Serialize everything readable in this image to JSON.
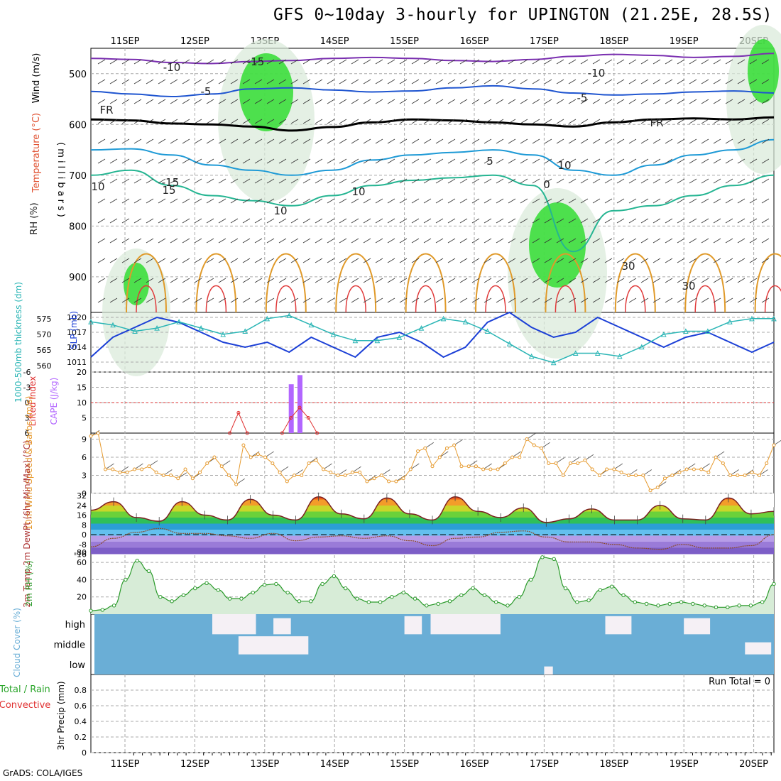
{
  "title": "GFS 0~10day 3-hourly for UPINGTON (21.25E, 28.5S)",
  "credit": "GrADS: COLA/IGES",
  "x_axis": {
    "dates": [
      "11SEP",
      "12SEP",
      "13SEP",
      "14SEP",
      "15SEP",
      "16SEP",
      "17SEP",
      "18SEP",
      "19SEP",
      "20SEP"
    ]
  },
  "colors": {
    "grid": "#aaaaaa",
    "temp_contour_cold": "#7a2fb0",
    "temp_contour_cool": "#1f55d0",
    "temp_contour_mild": "#1e9ad6",
    "temp_contour_warm": "#25b592",
    "temp_contour_hot": "#e09a2a",
    "freezing_line": "#000000",
    "rh_high": "#33dd33",
    "slp": "#1b3fd6",
    "thickness": "#2ab5b5",
    "lifted_index": "#e03030",
    "cape": "#b266ff",
    "wind_speed": "#e69a2e",
    "rh2m": "#2a9a2a",
    "cloud": "#6aaed6",
    "cloud_gap": "#f5f0f5"
  },
  "chart_data": [
    {
      "id": "upper_air",
      "type": "heatmap",
      "ylabel": "(millibars)",
      "side_labels": [
        "Wind (m/s)",
        "Temperature (°C)",
        "RH (%)"
      ],
      "ylim": [
        970,
        450
      ],
      "y_ticks": [
        500,
        600,
        700,
        800,
        900
      ],
      "contour_labels": [
        "-15",
        "-10",
        "-10",
        "-5",
        "-5",
        "FR",
        "FR",
        "5",
        "10",
        "10",
        "10",
        "-15",
        "15",
        "30",
        "30",
        "10",
        "0"
      ],
      "temperature_levels": [
        {
          "label": "-10",
          "values": [
            470,
            472,
            478,
            480,
            476,
            474,
            470,
            468,
            470,
            474,
            476,
            472,
            466,
            462,
            464,
            468,
            466,
            460
          ]
        },
        {
          "label": "-5",
          "values": [
            535,
            540,
            545,
            540,
            530,
            528,
            532,
            536,
            534,
            528,
            524,
            530,
            538,
            542,
            540,
            536,
            534,
            538
          ]
        },
        {
          "label": "FR",
          "values": [
            590,
            592,
            598,
            600,
            604,
            612,
            605,
            596,
            590,
            592,
            596,
            600,
            604,
            596,
            590,
            588,
            590,
            586
          ]
        },
        {
          "label": "5",
          "values": [
            650,
            648,
            660,
            680,
            690,
            700,
            690,
            670,
            660,
            655,
            650,
            660,
            690,
            700,
            680,
            660,
            650,
            630
          ]
        },
        {
          "label": "10",
          "values": [
            700,
            690,
            720,
            740,
            750,
            760,
            740,
            720,
            710,
            705,
            700,
            720,
            850,
            770,
            760,
            740,
            720,
            700
          ]
        }
      ]
    },
    {
      "id": "thickness_slp",
      "type": "line",
      "ylabel": "1000-500mb thickness (dm)",
      "ylabel2": "SLP (mb)",
      "y_ticks": [
        560,
        565,
        570,
        575
      ],
      "y2_ticks": [
        1011,
        1014,
        1017,
        1020
      ],
      "ylim": [
        558,
        577
      ],
      "y2lim": [
        1009,
        1021
      ],
      "series": [
        {
          "name": "SLP",
          "values": [
            1012,
            1016,
            1018,
            1020,
            1019,
            1017,
            1015,
            1014,
            1015,
            1013,
            1016,
            1014,
            1012,
            1016,
            1017,
            1015,
            1012,
            1014,
            1019,
            1021,
            1018,
            1016,
            1017,
            1020,
            1018,
            1016,
            1014,
            1016,
            1017,
            1015,
            1013,
            1015
          ]
        },
        {
          "name": "Thickness",
          "values": [
            574,
            573,
            571,
            572,
            574,
            572,
            570,
            571,
            575,
            576,
            573,
            570,
            568,
            568,
            569,
            572,
            575,
            574,
            571,
            567,
            563,
            561,
            564,
            564,
            563,
            566,
            570,
            571,
            571,
            574,
            575,
            575
          ]
        }
      ]
    },
    {
      "id": "stability",
      "type": "bar",
      "ylabel": "Lifted Index",
      "ylabel2": "CAPE (J/kg)",
      "y_ticks": [
        "6",
        "3",
        "0",
        "-3",
        "-6"
      ],
      "y2_ticks": [
        "5",
        "10",
        "15",
        "20"
      ],
      "y2lim": [
        0,
        20
      ],
      "cape_bars": [
        {
          "date": "13SEP",
          "hour": 9,
          "value": 16
        },
        {
          "date": "13SEP",
          "hour": 12,
          "value": 19
        }
      ],
      "lifted_index": [
        {
          "date": "12SEP",
          "hour": 12,
          "value": 6
        },
        {
          "date": "12SEP",
          "hour": 15,
          "value": 2
        },
        {
          "date": "12SEP",
          "hour": 18,
          "value": 6
        },
        {
          "date": "13SEP",
          "hour": 6,
          "value": 6
        },
        {
          "date": "13SEP",
          "hour": 9,
          "value": 3
        },
        {
          "date": "13SEP",
          "hour": 12,
          "value": 1
        },
        {
          "date": "13SEP",
          "hour": 15,
          "value": 3
        },
        {
          "date": "13SEP",
          "hour": 18,
          "value": 6
        }
      ]
    },
    {
      "id": "wind10m",
      "type": "line",
      "ylabel": "10m Wind Speed & Barbs (m/s)",
      "y_ticks": [
        0,
        3,
        6,
        9
      ],
      "ylim": [
        0,
        10
      ],
      "values": [
        9.5,
        10,
        4,
        4,
        3.5,
        3.5,
        4,
        4,
        4.5,
        3.5,
        3,
        3,
        2.5,
        4,
        2.5,
        3.5,
        5,
        6,
        4.5,
        3,
        1.5,
        8,
        6,
        6.5,
        6,
        5,
        3.5,
        2,
        3,
        3,
        5,
        5.5,
        4,
        3.5,
        3,
        3,
        3.5,
        3.5,
        2,
        2.5,
        3,
        2,
        2,
        2.5,
        4,
        7,
        7.5,
        4.5,
        6,
        7.5,
        8,
        4.5,
        4.5,
        4.5,
        4,
        4,
        4,
        5,
        6,
        6,
        9,
        8,
        7.5,
        5,
        5,
        3,
        5,
        5,
        5.5,
        4,
        3,
        4,
        4,
        3.5,
        3,
        3,
        3,
        0.5,
        1,
        2.5,
        3,
        3.5,
        4,
        4,
        4,
        3.5,
        6,
        5,
        3,
        3,
        3,
        3.5,
        3,
        5,
        8
      ]
    },
    {
      "id": "temp2m",
      "type": "area",
      "ylabel": "2m Temp 2m DewPt (6hr Min/Max) (°C)",
      "y_ticks": [
        32,
        24,
        16,
        8,
        0,
        -8,
        -16,
        -80
      ],
      "temperature": [
        20,
        27,
        14,
        11,
        27,
        16,
        12,
        29,
        16,
        12,
        31,
        17,
        13,
        30,
        17,
        12,
        31,
        19,
        14,
        22,
        10,
        13,
        21,
        12,
        12,
        24,
        13,
        12,
        30,
        17,
        19
      ],
      "dewpoint": [
        -10,
        -3,
        2,
        5,
        1,
        1,
        -1,
        -3,
        1,
        -5,
        -2,
        -1,
        -3,
        -1,
        -5,
        -9,
        -3,
        -2,
        2,
        3,
        -2,
        -6,
        -6,
        -8,
        -11,
        -12,
        -8,
        -11,
        -11,
        -9,
        0
      ]
    },
    {
      "id": "rh2m",
      "type": "area",
      "ylabel": "2m RH (%)",
      "y_ticks": [
        20,
        40,
        60
      ],
      "ylim": [
        0,
        70
      ],
      "values": [
        4,
        5,
        10,
        40,
        62,
        50,
        20,
        15,
        22,
        30,
        36,
        28,
        18,
        18,
        25,
        34,
        35,
        25,
        15,
        15,
        35,
        44,
        30,
        18,
        14,
        14,
        20,
        25,
        18,
        10,
        12,
        15,
        22,
        30,
        22,
        14,
        10,
        20,
        40,
        66,
        64,
        30,
        14,
        16,
        28,
        32,
        22,
        14,
        12,
        10,
        12,
        14,
        12,
        10,
        8,
        8,
        10,
        10,
        14,
        35
      ]
    },
    {
      "id": "cloud",
      "type": "heatmap",
      "ylabel": "Cloud Cover (%)",
      "levels": [
        "high",
        "middle",
        "low"
      ],
      "gaps": [
        {
          "level": "high",
          "from_date": "12SEP",
          "from_hour": 6,
          "to_date": "12SEP",
          "to_hour": 21,
          "value": 100
        },
        {
          "level": "high",
          "from_date": "13SEP",
          "from_hour": 3,
          "to_date": "13SEP",
          "to_hour": 9,
          "value": 80
        },
        {
          "level": "middle",
          "from_date": "12SEP",
          "from_hour": 15,
          "to_date": "13SEP",
          "to_hour": 15,
          "value": 90
        },
        {
          "level": "high",
          "from_date": "15SEP",
          "from_hour": 0,
          "to_date": "15SEP",
          "to_hour": 6,
          "value": 90
        },
        {
          "level": "high",
          "from_date": "15SEP",
          "from_hour": 9,
          "to_date": "16SEP",
          "to_hour": 9,
          "value": 100
        },
        {
          "level": "high",
          "from_date": "17SEP",
          "from_hour": 21,
          "to_date": "18SEP",
          "to_hour": 6,
          "value": 90
        },
        {
          "level": "high",
          "from_date": "19SEP",
          "from_hour": 0,
          "to_date": "19SEP",
          "to_hour": 9,
          "value": 80
        },
        {
          "level": "middle",
          "from_date": "19SEP",
          "from_hour": 21,
          "to_date": "20SEP",
          "to_hour": 6,
          "value": 60
        },
        {
          "level": "low",
          "from_date": "17SEP",
          "from_hour": 0,
          "to_date": "17SEP",
          "to_hour": 3,
          "value": 40
        }
      ]
    },
    {
      "id": "precip",
      "type": "bar",
      "ylabel": "3hr Precip (mm)",
      "side_labels": [
        "Total / Rain",
        "Convective"
      ],
      "y_ticks": [
        0,
        0.2,
        0.4,
        0.6,
        0.8
      ],
      "ylim": [
        0,
        1
      ],
      "run_total_label": "Run Total = 0",
      "values": []
    }
  ]
}
